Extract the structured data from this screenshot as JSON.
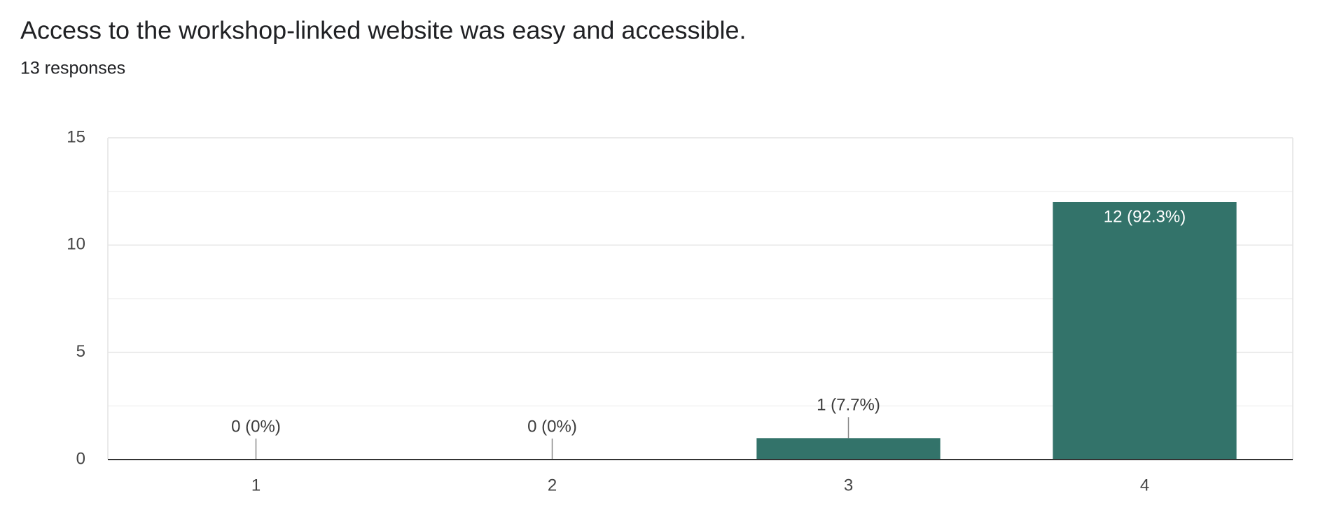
{
  "chart_data": {
    "type": "bar",
    "title": "Access to the workshop-linked website was easy and accessible.",
    "subtitle": "13 responses",
    "categories": [
      "1",
      "2",
      "3",
      "4"
    ],
    "values": [
      0,
      0,
      1,
      12
    ],
    "value_labels": [
      "0 (0%)",
      "0 (0%)",
      "1 (7.7%)",
      "12 (92.3%)"
    ],
    "color": "#33736a",
    "ylim": [
      0,
      15
    ],
    "yticks": [
      0,
      5,
      10,
      15
    ],
    "minor_yticks": [
      2.5,
      7.5,
      12.5
    ],
    "grid": true
  }
}
